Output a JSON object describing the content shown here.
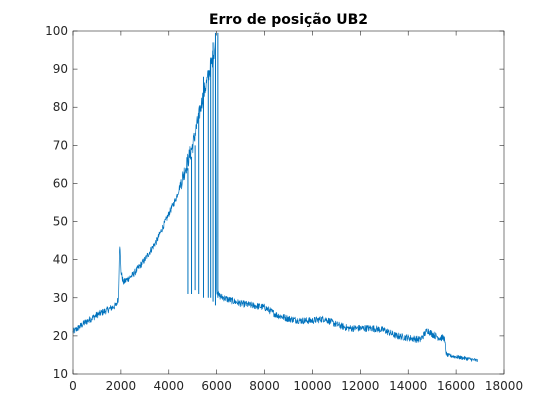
{
  "chart_data": {
    "type": "line",
    "title": "Erro de posição UB2",
    "xlabel": "",
    "ylabel": "",
    "xlim": [
      0,
      18000
    ],
    "ylim": [
      10,
      100
    ],
    "xticks": [
      0,
      2000,
      4000,
      6000,
      8000,
      10000,
      12000,
      14000,
      16000,
      18000
    ],
    "xtick_labels": [
      "0",
      "2000",
      "4000",
      "6000",
      "8000",
      "10000",
      "12000",
      "14000",
      "16000",
      "18000"
    ],
    "yticks": [
      10,
      20,
      30,
      40,
      50,
      60,
      70,
      80,
      90,
      100
    ],
    "ytick_labels": [
      "10",
      "20",
      "30",
      "40",
      "50",
      "60",
      "70",
      "80",
      "90",
      "100"
    ],
    "grid": false,
    "line_color": "#0072BD",
    "series": [
      {
        "x": [
          0,
          500,
          1000,
          1500,
          1800,
          1900,
          1950,
          2000,
          2100,
          2500,
          3000,
          3500,
          4000,
          4300,
          4500,
          4800,
          5000,
          5200,
          5400,
          5600,
          5800,
          5950,
          6000,
          6100,
          6500,
          7000,
          7500,
          8000,
          8500,
          9000,
          9500,
          10000,
          10500,
          11000,
          11500,
          12000,
          12500,
          13000,
          13500,
          14000,
          14500,
          14800,
          15000,
          15300,
          15500,
          15600,
          16000,
          16500,
          16900
        ],
        "y": [
          21,
          23.5,
          25.5,
          27,
          28,
          30,
          45,
          37,
          34,
          36,
          40,
          45,
          52,
          56,
          60,
          66,
          70,
          76,
          82,
          87,
          92,
          96,
          32,
          30.5,
          29.5,
          28.5,
          28,
          27.5,
          25.5,
          24.5,
          24,
          24,
          24.5,
          23,
          22,
          22,
          22,
          21.5,
          20,
          19.5,
          19,
          21.5,
          20.5,
          19.5,
          19.5,
          15,
          14.5,
          14,
          13.5
        ]
      }
    ],
    "spikes": [
      {
        "x": 4800,
        "y_low": 31,
        "y_high": 64
      },
      {
        "x": 4950,
        "y_low": 31,
        "y_high": 67
      },
      {
        "x": 5100,
        "y_low": 32,
        "y_high": 70
      },
      {
        "x": 5250,
        "y_low": 31,
        "y_high": 78
      },
      {
        "x": 5450,
        "y_low": 30,
        "y_high": 88
      },
      {
        "x": 5650,
        "y_low": 30,
        "y_high": 88
      },
      {
        "x": 5750,
        "y_low": 30,
        "y_high": 93
      },
      {
        "x": 5850,
        "y_low": 29,
        "y_high": 97
      },
      {
        "x": 5950,
        "y_low": 28,
        "y_high": 99.5
      },
      {
        "x": 6050,
        "y_low": 30,
        "y_high": 99.5
      }
    ]
  }
}
